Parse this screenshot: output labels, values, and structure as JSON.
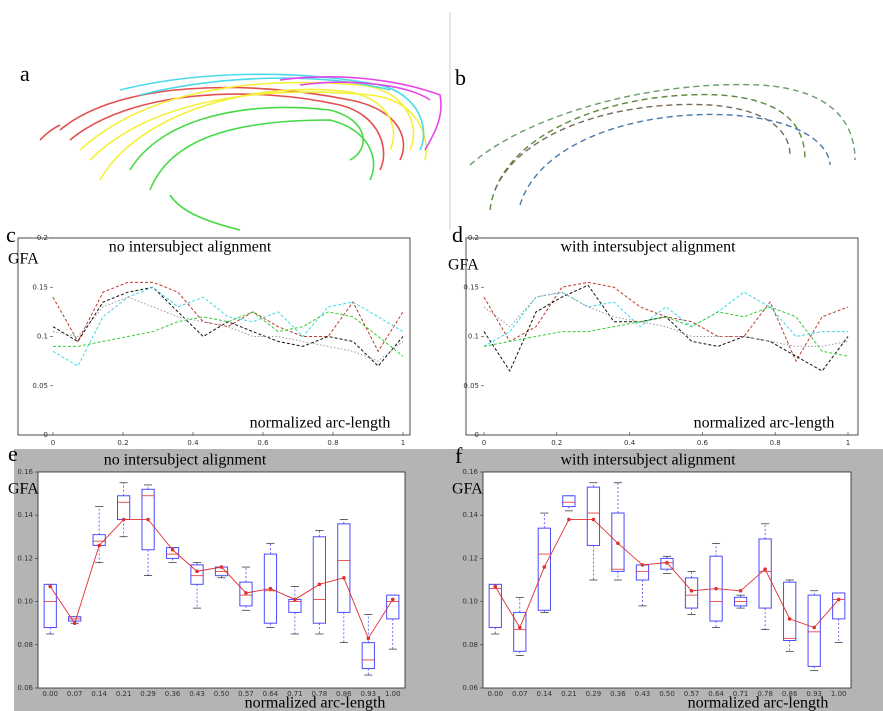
{
  "figure_labels": [
    "a",
    "b"
  ],
  "chart_data": [
    {
      "type": "line",
      "panel_label": "c",
      "title": "no intersubject alignment",
      "y_label": "GFA",
      "x_label": "normalized arc-length",
      "x": [
        0,
        0.071,
        0.143,
        0.214,
        0.286,
        0.357,
        0.429,
        0.5,
        0.571,
        0.643,
        0.714,
        0.786,
        0.857,
        0.929,
        1
      ],
      "xlim": [
        0,
        1
      ],
      "xticks": [
        0,
        0.2,
        0.4,
        0.6,
        0.8,
        1
      ],
      "ylim": [
        0,
        0.2
      ],
      "yticks": [
        0,
        0.05,
        0.1,
        0.15,
        0.2
      ],
      "series": [
        {
          "color": "#c0392b",
          "values": [
            0.14,
            0.095,
            0.145,
            0.155,
            0.155,
            0.145,
            0.115,
            0.11,
            0.125,
            0.11,
            0.1,
            0.1,
            0.135,
            0.085,
            0.125
          ]
        },
        {
          "color": "#111111",
          "values": [
            0.11,
            0.095,
            0.135,
            0.145,
            0.15,
            0.125,
            0.1,
            0.115,
            0.105,
            0.095,
            0.09,
            0.1,
            0.095,
            0.07,
            0.1
          ]
        },
        {
          "color": "#3fd8e8",
          "values": [
            0.085,
            0.07,
            0.12,
            0.14,
            0.15,
            0.13,
            0.14,
            0.12,
            0.115,
            0.125,
            0.1,
            0.13,
            0.135,
            0.12,
            0.105
          ]
        },
        {
          "color": "#33cc33",
          "values": [
            0.09,
            0.09,
            0.095,
            0.1,
            0.105,
            0.115,
            0.12,
            0.115,
            0.125,
            0.105,
            0.11,
            0.125,
            0.12,
            0.1,
            0.08
          ]
        },
        {
          "color": "#999999",
          "values": [
            0.105,
            0.1,
            0.13,
            0.14,
            0.13,
            0.12,
            0.115,
            0.11,
            0.1,
            0.1,
            0.095,
            0.09,
            0.085,
            0.075,
            0.095
          ]
        }
      ]
    },
    {
      "type": "line",
      "panel_label": "d",
      "title": "with intersubject alignment",
      "y_label": "GFA",
      "x_label": "normalized arc-length",
      "x": [
        0,
        0.071,
        0.143,
        0.214,
        0.286,
        0.357,
        0.429,
        0.5,
        0.571,
        0.643,
        0.714,
        0.786,
        0.857,
        0.929,
        1
      ],
      "xlim": [
        0,
        1
      ],
      "xticks": [
        0,
        0.2,
        0.4,
        0.6,
        0.8,
        1
      ],
      "ylim": [
        0,
        0.2
      ],
      "yticks": [
        0,
        0.05,
        0.1,
        0.15,
        0.2
      ],
      "series": [
        {
          "color": "#c0392b",
          "values": [
            0.14,
            0.095,
            0.11,
            0.15,
            0.155,
            0.15,
            0.13,
            0.12,
            0.115,
            0.1,
            0.1,
            0.135,
            0.075,
            0.12,
            0.13
          ]
        },
        {
          "color": "#111111",
          "values": [
            0.105,
            0.065,
            0.125,
            0.14,
            0.152,
            0.115,
            0.115,
            0.12,
            0.095,
            0.09,
            0.1,
            0.095,
            0.08,
            0.065,
            0.1
          ]
        },
        {
          "color": "#3fd8e8",
          "values": [
            0.09,
            0.105,
            0.14,
            0.145,
            0.13,
            0.135,
            0.11,
            0.13,
            0.11,
            0.125,
            0.145,
            0.13,
            0.1,
            0.105,
            0.105
          ]
        },
        {
          "color": "#33cc33",
          "values": [
            0.09,
            0.095,
            0.1,
            0.105,
            0.105,
            0.11,
            0.115,
            0.12,
            0.11,
            0.125,
            0.12,
            0.13,
            0.12,
            0.085,
            0.08
          ]
        },
        {
          "color": "#999999",
          "values": [
            0.13,
            0.11,
            0.14,
            0.145,
            0.13,
            0.12,
            0.115,
            0.11,
            0.1,
            0.1,
            0.1,
            0.095,
            0.09,
            0.09,
            0.095
          ]
        }
      ]
    },
    {
      "type": "box",
      "panel_label": "e",
      "title": "no intersubject alignment",
      "y_label": "GFA",
      "x_label": "normalized arc-length",
      "categories": [
        "0.00",
        "0.07",
        "0.14",
        "0.21",
        "0.29",
        "0.36",
        "0.43",
        "0.50",
        "0.57",
        "0.64",
        "0.71",
        "0.78",
        "0.86",
        "0.93",
        "1.00"
      ],
      "ylim": [
        0.06,
        0.16
      ],
      "yticks": [
        0.06,
        0.08,
        {
          "value": 0.1,
          "label": "0.10"
        },
        0.12,
        0.14,
        0.16
      ],
      "box_color": "#4b4bff",
      "mean_color": "#e03030",
      "whisker_low": [
        0.085,
        0.09,
        0.118,
        0.13,
        0.112,
        0.118,
        0.097,
        0.111,
        0.096,
        0.088,
        0.085,
        0.085,
        0.081,
        0.066,
        0.078
      ],
      "q1": [
        0.088,
        0.091,
        0.126,
        0.138,
        0.124,
        0.12,
        0.108,
        0.112,
        0.098,
        0.09,
        0.095,
        0.09,
        0.095,
        0.069,
        0.092
      ],
      "median": [
        0.1,
        0.092,
        0.128,
        0.146,
        0.149,
        0.122,
        0.112,
        0.114,
        0.103,
        0.105,
        0.1,
        0.101,
        0.119,
        0.073,
        0.1
      ],
      "q3": [
        0.108,
        0.093,
        0.131,
        0.149,
        0.152,
        0.125,
        0.117,
        0.116,
        0.109,
        0.122,
        0.101,
        0.13,
        0.136,
        0.081,
        0.103
      ],
      "whisker_high": [
        0.108,
        0.093,
        0.144,
        0.155,
        0.154,
        0.125,
        0.118,
        0.116,
        0.116,
        0.127,
        0.107,
        0.133,
        0.138,
        0.094,
        0.103
      ],
      "mean": [
        0.107,
        0.09,
        0.126,
        0.138,
        0.138,
        0.124,
        0.114,
        0.116,
        0.104,
        0.106,
        0.101,
        0.108,
        0.111,
        0.083,
        0.101
      ]
    },
    {
      "type": "box",
      "panel_label": "f",
      "title": "with intersubject alignment",
      "y_label": "GFA",
      "x_label": "normalized arc-length",
      "categories": [
        "0.00",
        "0.07",
        "0.14",
        "0.21",
        "0.29",
        "0.36",
        "0.43",
        "0.50",
        "0.57",
        "0.64",
        "0.71",
        "0.78",
        "0.86",
        "0.93",
        "1.00"
      ],
      "ylim": [
        0.06,
        0.16
      ],
      "yticks": [
        0.06,
        0.08,
        {
          "value": 0.1,
          "label": "0.10"
        },
        0.12,
        0.14,
        0.16
      ],
      "box_color": "#4b4bff",
      "mean_color": "#e03030",
      "whisker_low": [
        0.085,
        0.075,
        0.095,
        0.142,
        0.11,
        0.11,
        0.098,
        0.113,
        0.094,
        0.088,
        0.097,
        0.087,
        0.077,
        0.068,
        0.081
      ],
      "q1": [
        0.088,
        0.077,
        0.096,
        0.144,
        0.126,
        0.114,
        0.11,
        0.115,
        0.097,
        0.091,
        0.098,
        0.097,
        0.082,
        0.07,
        0.092
      ],
      "median": [
        0.106,
        0.087,
        0.122,
        0.146,
        0.141,
        0.115,
        0.114,
        0.118,
        0.103,
        0.1,
        0.1,
        0.114,
        0.083,
        0.086,
        0.101
      ],
      "q3": [
        0.108,
        0.095,
        0.134,
        0.149,
        0.153,
        0.141,
        0.117,
        0.12,
        0.111,
        0.121,
        0.102,
        0.129,
        0.109,
        0.103,
        0.104
      ],
      "whisker_high": [
        0.108,
        0.102,
        0.141,
        0.149,
        0.155,
        0.155,
        0.117,
        0.121,
        0.114,
        0.127,
        0.103,
        0.136,
        0.11,
        0.105,
        0.104
      ],
      "mean": [
        0.107,
        0.088,
        0.116,
        0.138,
        0.138,
        0.127,
        0.117,
        0.118,
        0.105,
        0.106,
        0.105,
        0.115,
        0.092,
        0.088,
        0.101
      ]
    }
  ]
}
